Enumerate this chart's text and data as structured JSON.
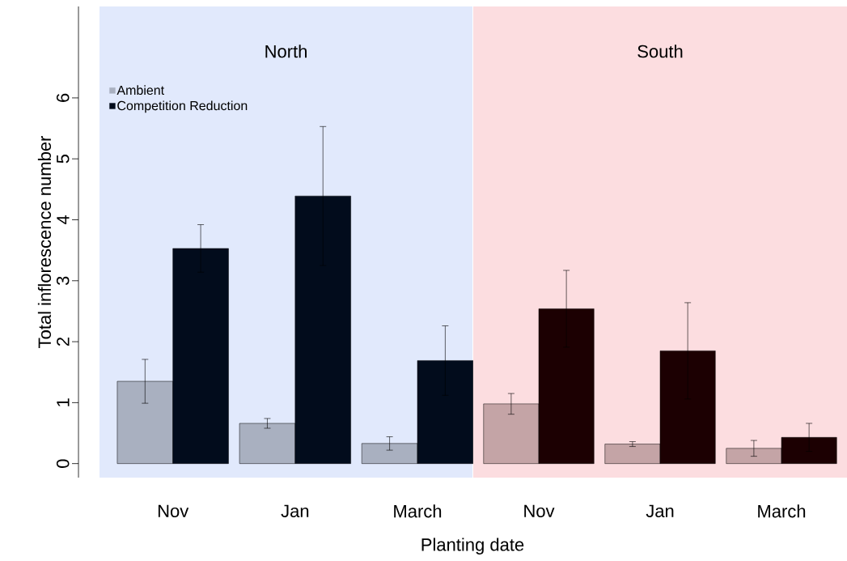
{
  "chart_data": [
    {
      "type": "bar",
      "title": "North",
      "xlabel": "Planting date",
      "ylabel": "Total inflorescence number",
      "categories": [
        "Nov",
        "Jan",
        "March"
      ],
      "series": [
        {
          "name": "Ambient",
          "color": "#a9b0c0",
          "values": [
            1.35,
            0.66,
            0.33
          ],
          "errors": [
            0.36,
            0.08,
            0.11
          ]
        },
        {
          "name": "Competition Reduction",
          "color": "#020c1c",
          "values": [
            3.53,
            4.39,
            1.69
          ],
          "errors": [
            0.39,
            1.14,
            0.57
          ]
        }
      ],
      "ylim": [
        -0.23,
        7.5
      ],
      "yticks": [
        0,
        1,
        2,
        3,
        4,
        5,
        6
      ],
      "legend": "top left"
    },
    {
      "type": "bar",
      "title": "South",
      "categories": [
        "Nov",
        "Jan",
        "March"
      ],
      "series": [
        {
          "color": "#c4a4a6",
          "values": [
            0.98,
            0.32,
            0.25
          ],
          "errors": [
            0.17,
            0.04,
            0.13
          ]
        },
        {
          "color": "#1c0002",
          "values": [
            2.54,
            1.85,
            0.43
          ],
          "errors": [
            0.63,
            0.79,
            0.23
          ]
        }
      ],
      "ylim": [
        -0.23,
        7.5
      ],
      "tick_labels": "x"
    }
  ]
}
